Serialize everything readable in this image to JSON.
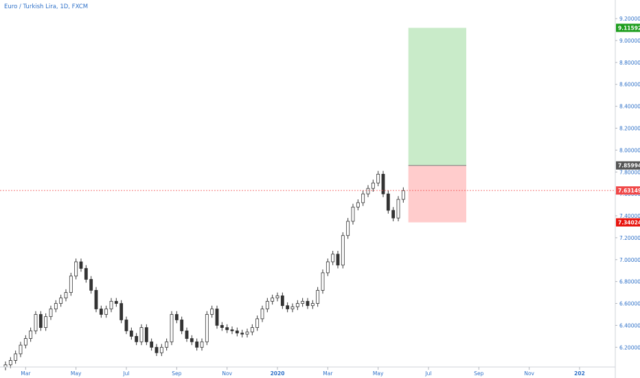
{
  "header": {
    "title": "Euro / Turkish Lira, 1D, FXCM"
  },
  "chart_data": {
    "type": "candlestick",
    "title": "Euro / Turkish Lira, 1D, FXCM",
    "y_ticks": [
      "9.20000",
      "9.00000",
      "8.80000",
      "8.60000",
      "8.40000",
      "8.20000",
      "8.00000",
      "7.80000",
      "7.60000",
      "7.40000",
      "7.20000",
      "7.00000",
      "6.80000",
      "6.60000",
      "6.40000",
      "6.20000"
    ],
    "y_tick_values": [
      9.2,
      9.0,
      8.8,
      8.6,
      8.4,
      8.2,
      8.0,
      7.8,
      7.6,
      7.4,
      7.2,
      7.0,
      6.8,
      6.6,
      6.4,
      6.2
    ],
    "ylim": [
      6.02,
      9.37
    ],
    "x_ticks": [
      "Mar",
      "May",
      "Jul",
      "Sep",
      "Nov",
      "2020",
      "Mar",
      "May",
      "Jul",
      "Sep",
      "Nov",
      "202"
    ],
    "x_tick_bold": [
      false,
      false,
      false,
      false,
      false,
      true,
      false,
      false,
      false,
      false,
      false,
      true
    ],
    "xlim": [
      0,
      120
    ],
    "x_tick_positions": [
      4,
      14,
      24,
      34,
      44,
      54,
      64,
      74,
      84,
      94,
      104,
      114
    ],
    "series_close": [
      [
        0,
        6.04
      ],
      [
        1,
        6.08
      ],
      [
        2,
        6.14
      ],
      [
        3,
        6.22
      ],
      [
        4,
        6.28
      ],
      [
        5,
        6.35
      ],
      [
        6,
        6.5
      ],
      [
        7,
        6.38
      ],
      [
        8,
        6.48
      ],
      [
        9,
        6.55
      ],
      [
        10,
        6.6
      ],
      [
        11,
        6.65
      ],
      [
        12,
        6.7
      ],
      [
        13,
        6.85
      ],
      [
        14,
        6.98
      ],
      [
        15,
        6.92
      ],
      [
        16,
        6.82
      ],
      [
        17,
        6.72
      ],
      [
        18,
        6.55
      ],
      [
        19,
        6.5
      ],
      [
        20,
        6.55
      ],
      [
        21,
        6.62
      ],
      [
        22,
        6.6
      ],
      [
        23,
        6.45
      ],
      [
        24,
        6.35
      ],
      [
        25,
        6.3
      ],
      [
        26,
        6.25
      ],
      [
        27,
        6.38
      ],
      [
        28,
        6.25
      ],
      [
        29,
        6.2
      ],
      [
        30,
        6.15
      ],
      [
        31,
        6.2
      ],
      [
        32,
        6.25
      ],
      [
        33,
        6.5
      ],
      [
        34,
        6.45
      ],
      [
        35,
        6.35
      ],
      [
        36,
        6.28
      ],
      [
        37,
        6.25
      ],
      [
        38,
        6.2
      ],
      [
        39,
        6.25
      ],
      [
        40,
        6.5
      ],
      [
        41,
        6.55
      ],
      [
        42,
        6.4
      ],
      [
        43,
        6.38
      ],
      [
        44,
        6.36
      ],
      [
        45,
        6.35
      ],
      [
        46,
        6.33
      ],
      [
        47,
        6.32
      ],
      [
        48,
        6.34
      ],
      [
        49,
        6.38
      ],
      [
        50,
        6.46
      ],
      [
        51,
        6.55
      ],
      [
        52,
        6.62
      ],
      [
        53,
        6.65
      ],
      [
        54,
        6.67
      ],
      [
        55,
        6.58
      ],
      [
        56,
        6.55
      ],
      [
        57,
        6.57
      ],
      [
        58,
        6.6
      ],
      [
        59,
        6.62
      ],
      [
        60,
        6.58
      ],
      [
        61,
        6.6
      ],
      [
        62,
        6.72
      ],
      [
        63,
        6.88
      ],
      [
        64,
        6.98
      ],
      [
        65,
        7.05
      ],
      [
        66,
        6.95
      ],
      [
        67,
        7.22
      ],
      [
        68,
        7.35
      ],
      [
        69,
        7.48
      ],
      [
        70,
        7.52
      ],
      [
        71,
        7.6
      ],
      [
        72,
        7.65
      ],
      [
        73,
        7.7
      ],
      [
        74,
        7.78
      ],
      [
        75,
        7.6
      ],
      [
        76,
        7.45
      ],
      [
        77,
        7.38
      ],
      [
        78,
        7.55
      ],
      [
        79,
        7.63
      ]
    ],
    "position": {
      "entry": 7.85994,
      "target": 9.11592,
      "stop": 7.34024,
      "x_start": 80,
      "x_end": 91.5
    },
    "last_price": 7.63149,
    "price_tags": [
      {
        "label": "9.11592",
        "value": 9.11592,
        "color": "#1e9e1e"
      },
      {
        "label": "7.85994",
        "value": 7.85994,
        "color": "#555555"
      },
      {
        "label": "7.63149",
        "value": 7.63149,
        "color": "#f04848"
      },
      {
        "label": "7.34024",
        "value": 7.34024,
        "color": "#e8140e"
      }
    ],
    "colors": {
      "profit_zone": "#c9ebc9",
      "loss_zone": "#ffcccc",
      "candle": "#333333",
      "axis_text": "#2f71c8",
      "last_price_line": "#f04848"
    }
  }
}
